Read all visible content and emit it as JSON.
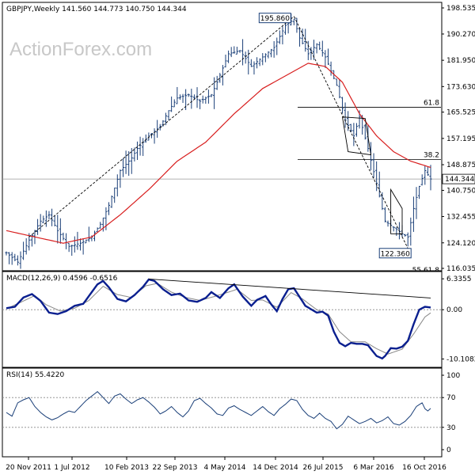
{
  "watermark": "ActionForex.com",
  "chart_data": [
    {
      "type": "bar",
      "subtype": "ohlc",
      "panel": "price",
      "symbol": "GBPJPY",
      "timeframe": "Weekly",
      "ohlc_header": [
        "141.560",
        "144.773",
        "140.750",
        "144.344"
      ],
      "last_price_label": "144.344",
      "ylim": [
        116.035,
        198.535
      ],
      "y_ticks": [
        198.535,
        190.27,
        181.95,
        173.63,
        165.525,
        157.195,
        148.875,
        140.75,
        132.455,
        124.12,
        116.035
      ],
      "y_tick_labels": [
        "198.535",
        "190.270",
        "181.950",
        "173.630",
        "165.525",
        "157.195",
        "148.875",
        "140.750",
        "132.455",
        "124.120",
        "116.035"
      ],
      "x_tick_labels": [
        "20 Nov 2011",
        "1 Jul 2012",
        "10 Feb 2013",
        "22 Sep 2013",
        "4 May 2014",
        "14 Dec 2014",
        "26 Jul 2015",
        "6 Mar 2016",
        "16 Oct 2016"
      ],
      "close_anchors": [
        [
          0,
          121
        ],
        [
          4,
          118
        ],
        [
          8,
          125
        ],
        [
          12,
          131
        ],
        [
          15,
          133
        ],
        [
          18,
          128
        ],
        [
          22,
          123
        ],
        [
          26,
          124
        ],
        [
          30,
          126
        ],
        [
          33,
          130
        ],
        [
          36,
          136
        ],
        [
          40,
          147
        ],
        [
          44,
          151
        ],
        [
          46,
          154
        ],
        [
          50,
          158
        ],
        [
          54,
          161
        ],
        [
          57,
          166
        ],
        [
          60,
          170
        ],
        [
          64,
          171
        ],
        [
          68,
          169
        ],
        [
          72,
          171
        ],
        [
          74,
          175
        ],
        [
          78,
          184
        ],
        [
          82,
          185
        ],
        [
          86,
          180
        ],
        [
          90,
          183
        ],
        [
          94,
          186
        ],
        [
          98,
          193
        ],
        [
          101,
          195
        ],
        [
          103,
          189
        ],
        [
          106,
          184
        ],
        [
          109,
          187
        ],
        [
          112,
          183
        ],
        [
          116,
          174
        ],
        [
          119,
          163
        ],
        [
          122,
          158
        ],
        [
          124,
          164
        ],
        [
          127,
          154
        ],
        [
          130,
          143
        ],
        [
          133,
          131
        ],
        [
          136,
          129
        ],
        [
          139,
          127
        ],
        [
          141,
          126
        ],
        [
          143,
          135
        ],
        [
          145,
          142
        ],
        [
          147,
          147
        ],
        [
          149,
          144.344
        ]
      ],
      "sma": {
        "name": "SMA",
        "anchors": [
          [
            0,
            128
          ],
          [
            10,
            126
          ],
          [
            20,
            124
          ],
          [
            30,
            126
          ],
          [
            40,
            133
          ],
          [
            50,
            141
          ],
          [
            60,
            150
          ],
          [
            70,
            156
          ],
          [
            80,
            165
          ],
          [
            90,
            173
          ],
          [
            100,
            178
          ],
          [
            106,
            181
          ],
          [
            112,
            180
          ],
          [
            118,
            175
          ],
          [
            124,
            165
          ],
          [
            130,
            158
          ],
          [
            136,
            153
          ],
          [
            142,
            150
          ],
          [
            149,
            148
          ]
        ]
      },
      "fibonacci": [
        {
          "label": "61.8",
          "value": 167.05
        },
        {
          "label": "38.2",
          "value": 150.51
        }
      ],
      "partial_label": "55.61.8",
      "annotations": [
        {
          "text": "195.860",
          "value": 195.86,
          "bar": 101
        },
        {
          "text": "122.360",
          "value": 122.36,
          "bar": 141
        }
      ],
      "trendlines": [
        {
          "style": "dashed",
          "points": [
            [
              8,
              126
            ],
            [
              101,
              195.86
            ]
          ]
        },
        {
          "style": "dashed",
          "points": [
            [
              101,
              195.86
            ],
            [
              141,
              122.36
            ]
          ]
        }
      ],
      "flags": [
        {
          "points": [
            [
              118,
              164
            ],
            [
              126,
              163.5
            ],
            [
              128,
              152
            ],
            [
              120,
              153
            ]
          ]
        },
        {
          "points": [
            [
              135,
              141
            ],
            [
              139,
              135
            ],
            [
              139,
              127
            ],
            [
              135,
              127
            ]
          ]
        }
      ]
    },
    {
      "type": "line",
      "panel": "macd",
      "label": "MACD(12,26,9) 0.4596 -0.6516",
      "ylim": [
        -11.5,
        7.5
      ],
      "y_tick_labels": [
        "6.3355",
        "0.00",
        "-10.1082"
      ],
      "y_tick_values": [
        6.3355,
        0.0,
        -10.1082
      ],
      "macd_anchors": [
        [
          0,
          0.3
        ],
        [
          3,
          0.6
        ],
        [
          6,
          2.5
        ],
        [
          9,
          3.2
        ],
        [
          12,
          1.8
        ],
        [
          15,
          -0.6
        ],
        [
          18,
          -0.9
        ],
        [
          21,
          -0.3
        ],
        [
          24,
          0.8
        ],
        [
          27,
          1.2
        ],
        [
          30,
          3.6
        ],
        [
          32,
          5.2
        ],
        [
          34,
          5.9
        ],
        [
          36,
          4.6
        ],
        [
          39,
          2.2
        ],
        [
          42,
          1.7
        ],
        [
          45,
          3.0
        ],
        [
          48,
          4.7
        ],
        [
          50,
          6.2
        ],
        [
          52,
          5.9
        ],
        [
          55,
          4.2
        ],
        [
          58,
          3.0
        ],
        [
          61,
          3.3
        ],
        [
          64,
          1.9
        ],
        [
          67,
          1.6
        ],
        [
          70,
          2.4
        ],
        [
          72,
          3.6
        ],
        [
          75,
          2.4
        ],
        [
          78,
          4.4
        ],
        [
          80,
          5.2
        ],
        [
          83,
          2.7
        ],
        [
          86,
          0.8
        ],
        [
          88,
          2.0
        ],
        [
          91,
          2.8
        ],
        [
          93,
          1.1
        ],
        [
          95,
          -0.3
        ],
        [
          97,
          2.2
        ],
        [
          99,
          4.2
        ],
        [
          101,
          4.4
        ],
        [
          103,
          2.6
        ],
        [
          105,
          0.8
        ],
        [
          107,
          0.1
        ],
        [
          109,
          -0.6
        ],
        [
          111,
          -0.4
        ],
        [
          113,
          -1.2
        ],
        [
          115,
          -4.5
        ],
        [
          117,
          -6.8
        ],
        [
          119,
          -7.5
        ],
        [
          121,
          -6.8
        ],
        [
          123,
          -7.0
        ],
        [
          125,
          -7.0
        ],
        [
          127,
          -7.3
        ],
        [
          130,
          -9.5
        ],
        [
          132,
          -10.0
        ],
        [
          133,
          -9.5
        ],
        [
          135,
          -7.9
        ],
        [
          137,
          -8.0
        ],
        [
          139,
          -7.6
        ],
        [
          141,
          -6.4
        ],
        [
          143,
          -3.0
        ],
        [
          145,
          0.0
        ],
        [
          147,
          0.6
        ],
        [
          149,
          0.46
        ]
      ],
      "signal_anchors": [
        [
          0,
          0.2
        ],
        [
          5,
          1.5
        ],
        [
          10,
          2.9
        ],
        [
          14,
          1.0
        ],
        [
          19,
          -0.3
        ],
        [
          24,
          0.3
        ],
        [
          29,
          1.9
        ],
        [
          34,
          4.8
        ],
        [
          39,
          3.1
        ],
        [
          44,
          2.5
        ],
        [
          49,
          4.9
        ],
        [
          53,
          5.4
        ],
        [
          58,
          3.6
        ],
        [
          63,
          2.5
        ],
        [
          68,
          1.9
        ],
        [
          73,
          2.7
        ],
        [
          78,
          3.6
        ],
        [
          81,
          4.2
        ],
        [
          86,
          1.9
        ],
        [
          90,
          2.0
        ],
        [
          95,
          0.5
        ],
        [
          100,
          3.5
        ],
        [
          104,
          2.2
        ],
        [
          109,
          0.0
        ],
        [
          113,
          -0.9
        ],
        [
          117,
          -4.5
        ],
        [
          121,
          -6.6
        ],
        [
          126,
          -6.6
        ],
        [
          130,
          -8.0
        ],
        [
          134,
          -9.1
        ],
        [
          139,
          -8.1
        ],
        [
          143,
          -5.0
        ],
        [
          147,
          -1.5
        ],
        [
          149,
          -0.65
        ]
      ],
      "trendline": {
        "points": [
          [
            50,
            6.3
          ],
          [
            149,
            2.4
          ]
        ]
      }
    },
    {
      "type": "line",
      "panel": "rsi",
      "label": "RSI(14) 55.4220",
      "ylim": [
        0,
        100
      ],
      "y_tick_labels": [
        "100",
        "70",
        "30",
        "0"
      ],
      "y_tick_values": [
        100,
        70,
        30,
        0
      ],
      "levels": [
        70,
        30
      ],
      "rsi_anchors": [
        [
          0,
          50
        ],
        [
          2,
          45
        ],
        [
          4,
          63
        ],
        [
          6,
          67
        ],
        [
          8,
          70
        ],
        [
          10,
          58
        ],
        [
          12,
          50
        ],
        [
          14,
          44
        ],
        [
          16,
          40
        ],
        [
          18,
          43
        ],
        [
          20,
          48
        ],
        [
          22,
          52
        ],
        [
          24,
          50
        ],
        [
          26,
          58
        ],
        [
          28,
          66
        ],
        [
          30,
          72
        ],
        [
          32,
          78
        ],
        [
          34,
          70
        ],
        [
          36,
          62
        ],
        [
          38,
          72
        ],
        [
          40,
          75
        ],
        [
          42,
          68
        ],
        [
          44,
          62
        ],
        [
          46,
          67
        ],
        [
          48,
          70
        ],
        [
          50,
          64
        ],
        [
          52,
          57
        ],
        [
          54,
          48
        ],
        [
          56,
          52
        ],
        [
          58,
          58
        ],
        [
          60,
          50
        ],
        [
          62,
          44
        ],
        [
          64,
          52
        ],
        [
          66,
          66
        ],
        [
          68,
          69
        ],
        [
          70,
          62
        ],
        [
          72,
          56
        ],
        [
          74,
          48
        ],
        [
          76,
          46
        ],
        [
          78,
          56
        ],
        [
          80,
          59
        ],
        [
          82,
          54
        ],
        [
          84,
          50
        ],
        [
          86,
          46
        ],
        [
          88,
          52
        ],
        [
          90,
          58
        ],
        [
          92,
          51
        ],
        [
          94,
          46
        ],
        [
          96,
          55
        ],
        [
          98,
          61
        ],
        [
          100,
          68
        ],
        [
          102,
          66
        ],
        [
          104,
          54
        ],
        [
          106,
          46
        ],
        [
          108,
          42
        ],
        [
          110,
          49
        ],
        [
          112,
          42
        ],
        [
          114,
          38
        ],
        [
          116,
          28
        ],
        [
          118,
          34
        ],
        [
          120,
          45
        ],
        [
          122,
          40
        ],
        [
          124,
          35
        ],
        [
          126,
          38
        ],
        [
          128,
          42
        ],
        [
          130,
          36
        ],
        [
          132,
          39
        ],
        [
          134,
          44
        ],
        [
          136,
          35
        ],
        [
          138,
          33
        ],
        [
          140,
          38
        ],
        [
          142,
          46
        ],
        [
          144,
          58
        ],
        [
          146,
          63
        ],
        [
          147,
          55
        ],
        [
          148,
          52
        ],
        [
          149,
          55.42
        ]
      ]
    }
  ]
}
